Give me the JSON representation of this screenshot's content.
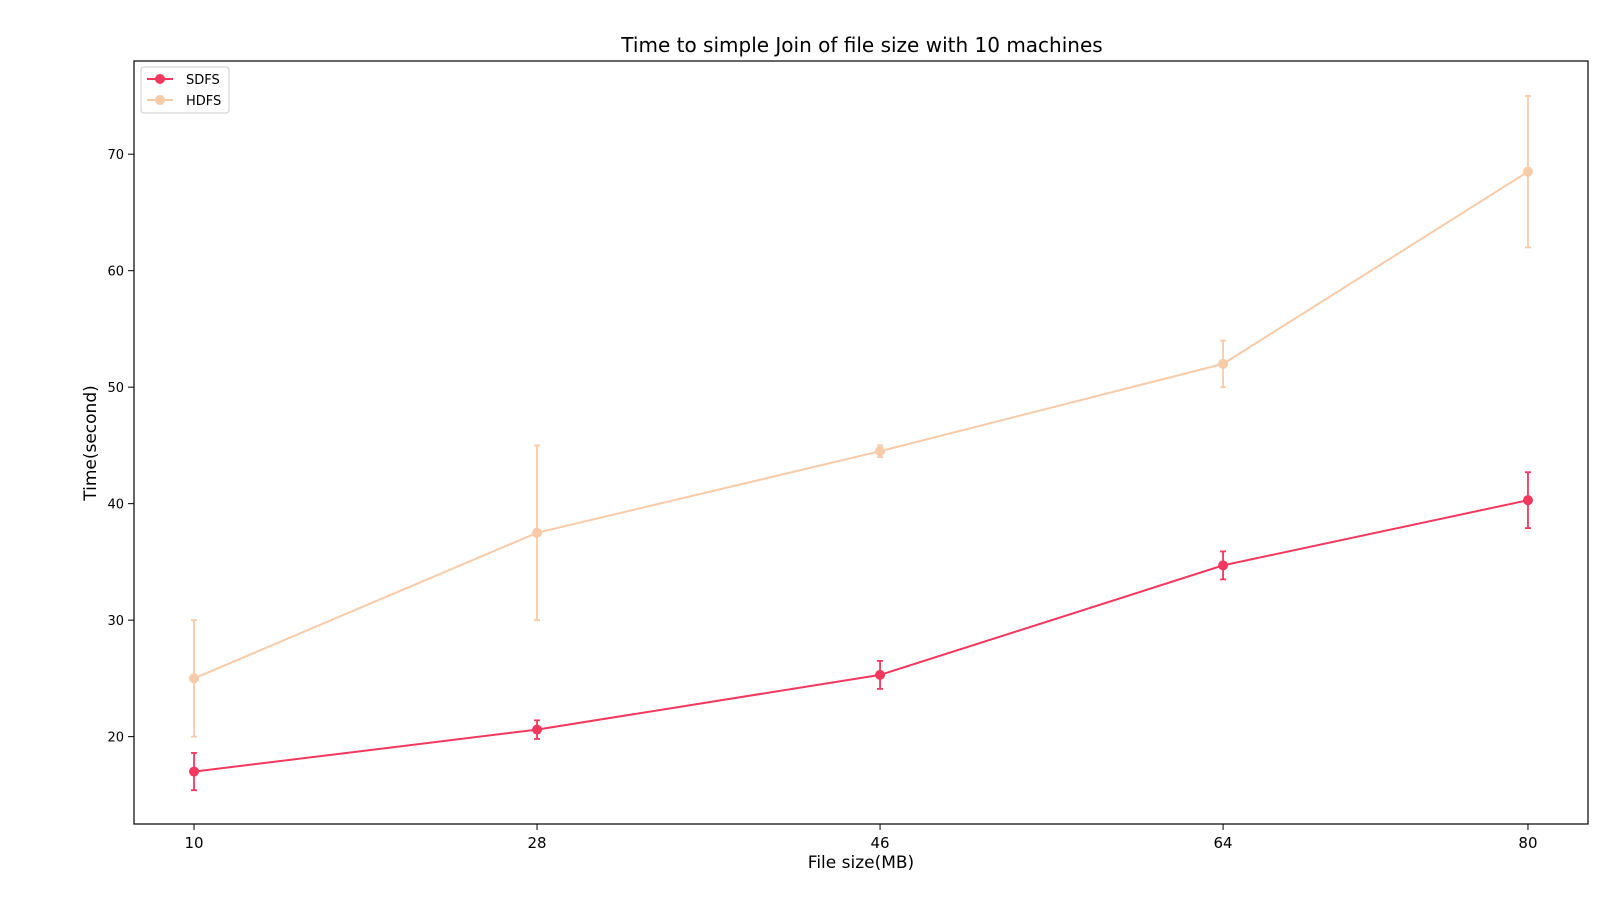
{
  "chart_data": {
    "type": "line",
    "title": "Time to simple Join of file size with 10 machines",
    "xlabel": "File size(MB)",
    "ylabel": "Time(second)",
    "x": [
      10,
      28,
      46,
      64,
      80
    ],
    "x_tick_labels": [
      "10",
      "28",
      "46",
      "64",
      "80"
    ],
    "y_ticks": [
      20,
      30,
      40,
      50,
      60,
      70
    ],
    "ylim": [
      12.5,
      78
    ],
    "grid": false,
    "legend_position": "top-left",
    "series": [
      {
        "name": "SDFS",
        "color": "#f2385e",
        "values": [
          17.0,
          20.6,
          25.3,
          34.7,
          40.3
        ],
        "errors": [
          1.6,
          0.8,
          1.2,
          1.2,
          2.4
        ]
      },
      {
        "name": "HDFS",
        "color": "#f8cba8",
        "values": [
          25.0,
          37.5,
          44.5,
          52.0,
          68.5
        ],
        "errors": [
          5.0,
          7.5,
          0.5,
          2.0,
          6.5
        ]
      }
    ]
  }
}
